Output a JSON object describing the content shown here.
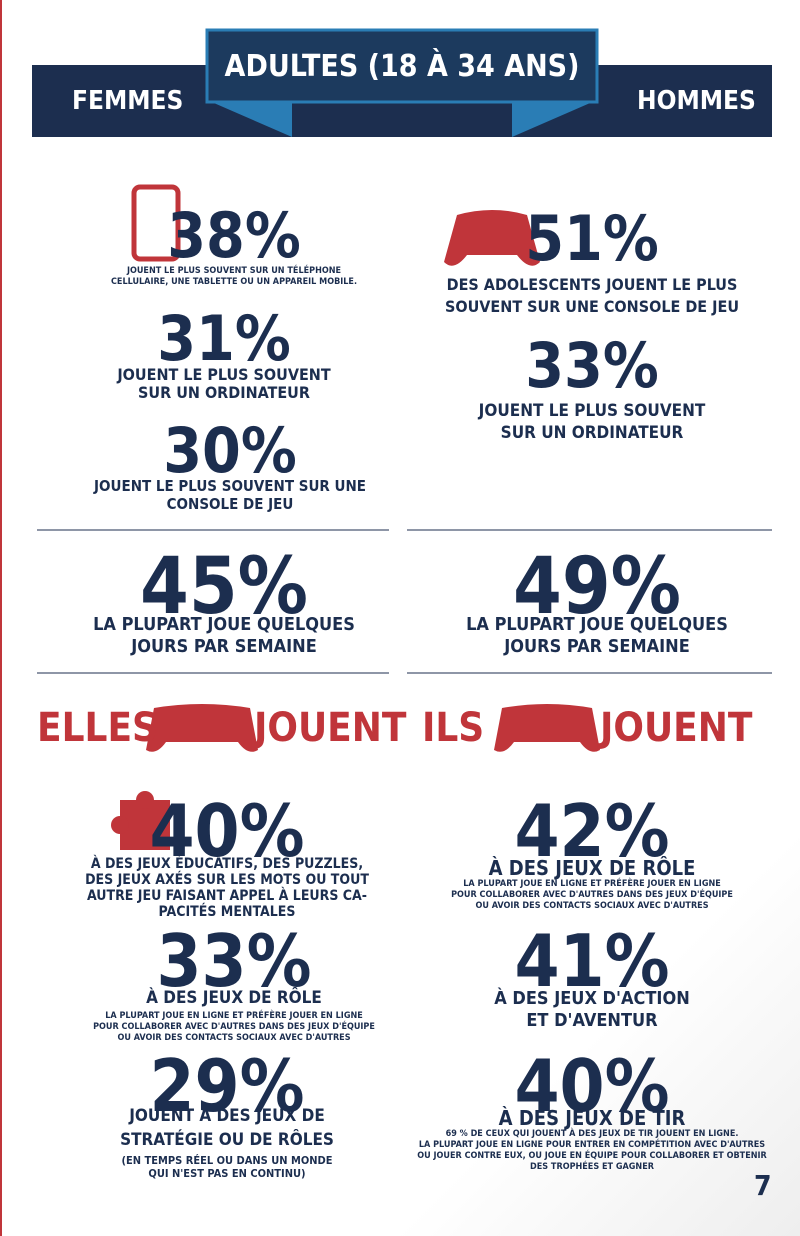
{
  "header": {
    "title": "ADULTES (18 À 34 ANS)",
    "left": "FEMMES",
    "right": "HOMMES"
  },
  "women": {
    "platform": [
      {
        "value": "38%",
        "lines": [
          "JOUENT LE PLUS SOUVENT SUR UN TÉLÉPHONE",
          "CELLULAIRE, UNE TABLETTE OU UN APPAREIL MOBILE."
        ]
      },
      {
        "value": "31%",
        "lines": [
          "JOUENT LE PLUS SOUVENT",
          "SUR UN ORDINATEUR"
        ]
      },
      {
        "value": "30%",
        "lines": [
          "JOUENT LE PLUS SOUVENT SUR UNE",
          "CONSOLE DE JEU"
        ]
      }
    ],
    "frequency": {
      "value": "45%",
      "lines": [
        "LA PLUPART JOUE QUELQUES",
        "JOURS PAR SEMAINE"
      ]
    },
    "play": {
      "left": "ELLES",
      "right": "JOUENT"
    },
    "genres": [
      {
        "value": "40%",
        "lines": [
          "À DES JEUX ÉDUCATIFS, DES PUZZLES,",
          "DES JEUX AXÉS SUR LES MOTS OU TOUT",
          "AUTRE JEU FAISANT APPEL À LEURS CA-",
          "PACITÉS MENTALES"
        ],
        "small": []
      },
      {
        "value": "33%",
        "lines": [
          "À DES JEUX DE RÔLE"
        ],
        "small": [
          "LA PLUPART JOUE EN LIGNE ET PRÉFÈRE JOUER EN LIGNE",
          "POUR COLLABORER AVEC D'AUTRES DANS DES JEUX D'ÉQUIPE",
          "OU AVOIR DES CONTACTS SOCIAUX AVEC D'AUTRES"
        ]
      },
      {
        "value": "29%",
        "lines": [
          "JOUENT À DES JEUX DE",
          "STRATÉGIE OU DE RÔLES"
        ],
        "small": [
          "(EN TEMPS RÉEL  OU DANS UN MONDE",
          "QUI N'EST PAS EN CONTINU)"
        ]
      }
    ]
  },
  "men": {
    "platform": [
      {
        "value": "51%",
        "lines": [
          "DES ADOLESCENTS JOUENT LE PLUS",
          "SOUVENT SUR UNE CONSOLE DE JEU"
        ]
      },
      {
        "value": "33%",
        "lines": [
          "JOUENT LE PLUS SOUVENT",
          "SUR UN ORDINATEUR"
        ]
      }
    ],
    "frequency": {
      "value": "49%",
      "lines": [
        "LA PLUPART JOUE QUELQUES",
        "JOURS PAR SEMAINE"
      ]
    },
    "play": {
      "left": "ILS",
      "right": "JOUENT"
    },
    "genres": [
      {
        "value": "42%",
        "lines": [
          "À DES JEUX DE RÔLE"
        ],
        "small": [
          "LA PLUPART JOUE EN LIGNE ET PRÉFÈRE JOUER EN LIGNE",
          "POUR COLLABORER AVEC D'AUTRES DANS DES JEUX D'ÉQUIPE",
          "OU AVOIR DES CONTACTS SOCIAUX AVEC D'AUTRES"
        ]
      },
      {
        "value": "41%",
        "lines": [
          "À DES JEUX D'ACTION",
          "ET D'AVENTUR"
        ],
        "small": []
      },
      {
        "value": "40%",
        "lines": [
          "À DES JEUX DE TIR"
        ],
        "small": [
          "69 % DE CEUX QUI JOUENT À DES JEUX DE TIR JOUENT EN LIGNE.",
          "LA PLUPART JOUE EN LIGNE POUR ENTRER EN COMPÉTITION AVEC D'AUTRES",
          "OU JOUER CONTRE EUX, OU JOUE EN ÉQUIPE POUR COLLABORER ET OBTENIR",
          "DES TROPHÉES ET GAGNER"
        ]
      }
    ]
  },
  "page_number": "7"
}
